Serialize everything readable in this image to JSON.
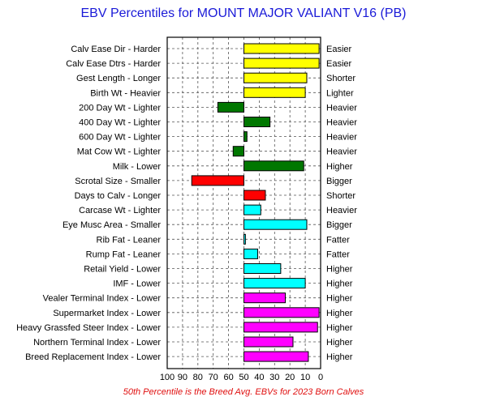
{
  "chart_data": {
    "type": "bar",
    "orientation": "horizontal",
    "title": "EBV Percentiles for MOUNT MAJOR VALIANT V16 (PB)",
    "footer": "50th Percentile is the Breed Avg. EBVs for 2023 Born Calves",
    "xlim": [
      100,
      0
    ],
    "baseline": 50,
    "x_ticks": [
      "100",
      "90",
      "80",
      "70",
      "60",
      "50",
      "40",
      "30",
      "20",
      "10",
      "0"
    ],
    "grid": true,
    "categories": [
      "Calv Ease Dir - Harder",
      "Calv Ease Dtrs - Harder",
      "Gest Length - Longer",
      "Birth Wt - Heavier",
      "200 Day Wt - Lighter",
      "400 Day Wt - Lighter",
      "600 Day Wt - Lighter",
      "Mat Cow Wt - Lighter",
      "Milk - Lower",
      "Scrotal Size - Smaller",
      "Days to Calv - Longer",
      "Carcase Wt - Lighter",
      "Eye Musc Area - Smaller",
      "Rib Fat - Leaner",
      "Rump Fat - Leaner",
      "Retail Yield - Lower",
      "IMF - Lower",
      "Vealer Terminal Index - Lower",
      "Supermarket Index - Lower",
      "Heavy Grassfed Steer Index - Lower",
      "Northern Terminal Index - Lower",
      "Breed Replacement Index - Lower"
    ],
    "right_labels": [
      "Easier",
      "Easier",
      "Shorter",
      "Lighter",
      "Heavier",
      "Heavier",
      "Heavier",
      "Heavier",
      "Higher",
      "Bigger",
      "Shorter",
      "Heavier",
      "Bigger",
      "Fatter",
      "Fatter",
      "Higher",
      "Higher",
      "Higher",
      "Higher",
      "Higher",
      "Higher",
      "Higher"
    ],
    "values": [
      1,
      1,
      9,
      10,
      67,
      33,
      48,
      57,
      11,
      84,
      36,
      39,
      9,
      49,
      41,
      26,
      10,
      23,
      1,
      2,
      18,
      8
    ],
    "colors": [
      "#ffff00",
      "#ffff00",
      "#ffff00",
      "#ffff00",
      "#007700",
      "#007700",
      "#007700",
      "#007700",
      "#007700",
      "#ff0000",
      "#ff0000",
      "#00ffff",
      "#00ffff",
      "#00ffff",
      "#00ffff",
      "#00ffff",
      "#00ffff",
      "#ff00ff",
      "#ff00ff",
      "#ff00ff",
      "#ff00ff",
      "#ff00ff"
    ]
  }
}
